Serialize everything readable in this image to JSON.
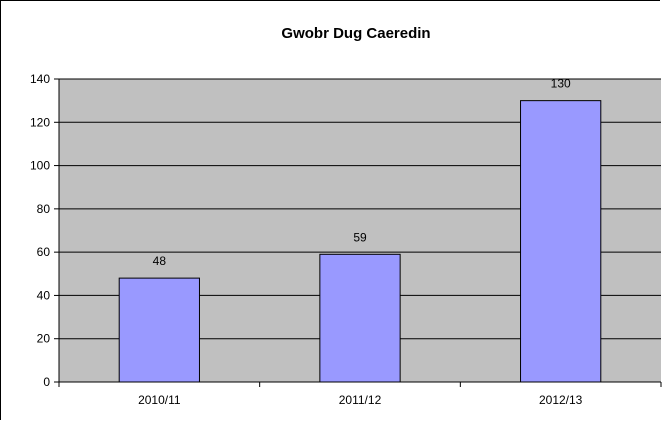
{
  "chart_data": {
    "type": "bar",
    "title": "Gwobr Dug Caeredin",
    "xlabel": "",
    "ylabel": "",
    "categories": [
      "2010/11",
      "2011/12",
      "2012/13"
    ],
    "values": [
      48,
      59,
      130
    ],
    "data_labels": [
      "48",
      "59",
      "130"
    ],
    "ylim": [
      0,
      140
    ],
    "yticks": [
      0,
      20,
      40,
      60,
      80,
      100,
      120,
      140
    ],
    "ytick_labels": [
      "0",
      "20",
      "40",
      "60",
      "80",
      "100",
      "120",
      "140"
    ],
    "grid": true,
    "legend": "none",
    "colors": {
      "bar_fill": "#9999ff",
      "bar_stroke": "#000000",
      "plot_background": "#c0c0c0",
      "gridline": "#000000"
    }
  }
}
